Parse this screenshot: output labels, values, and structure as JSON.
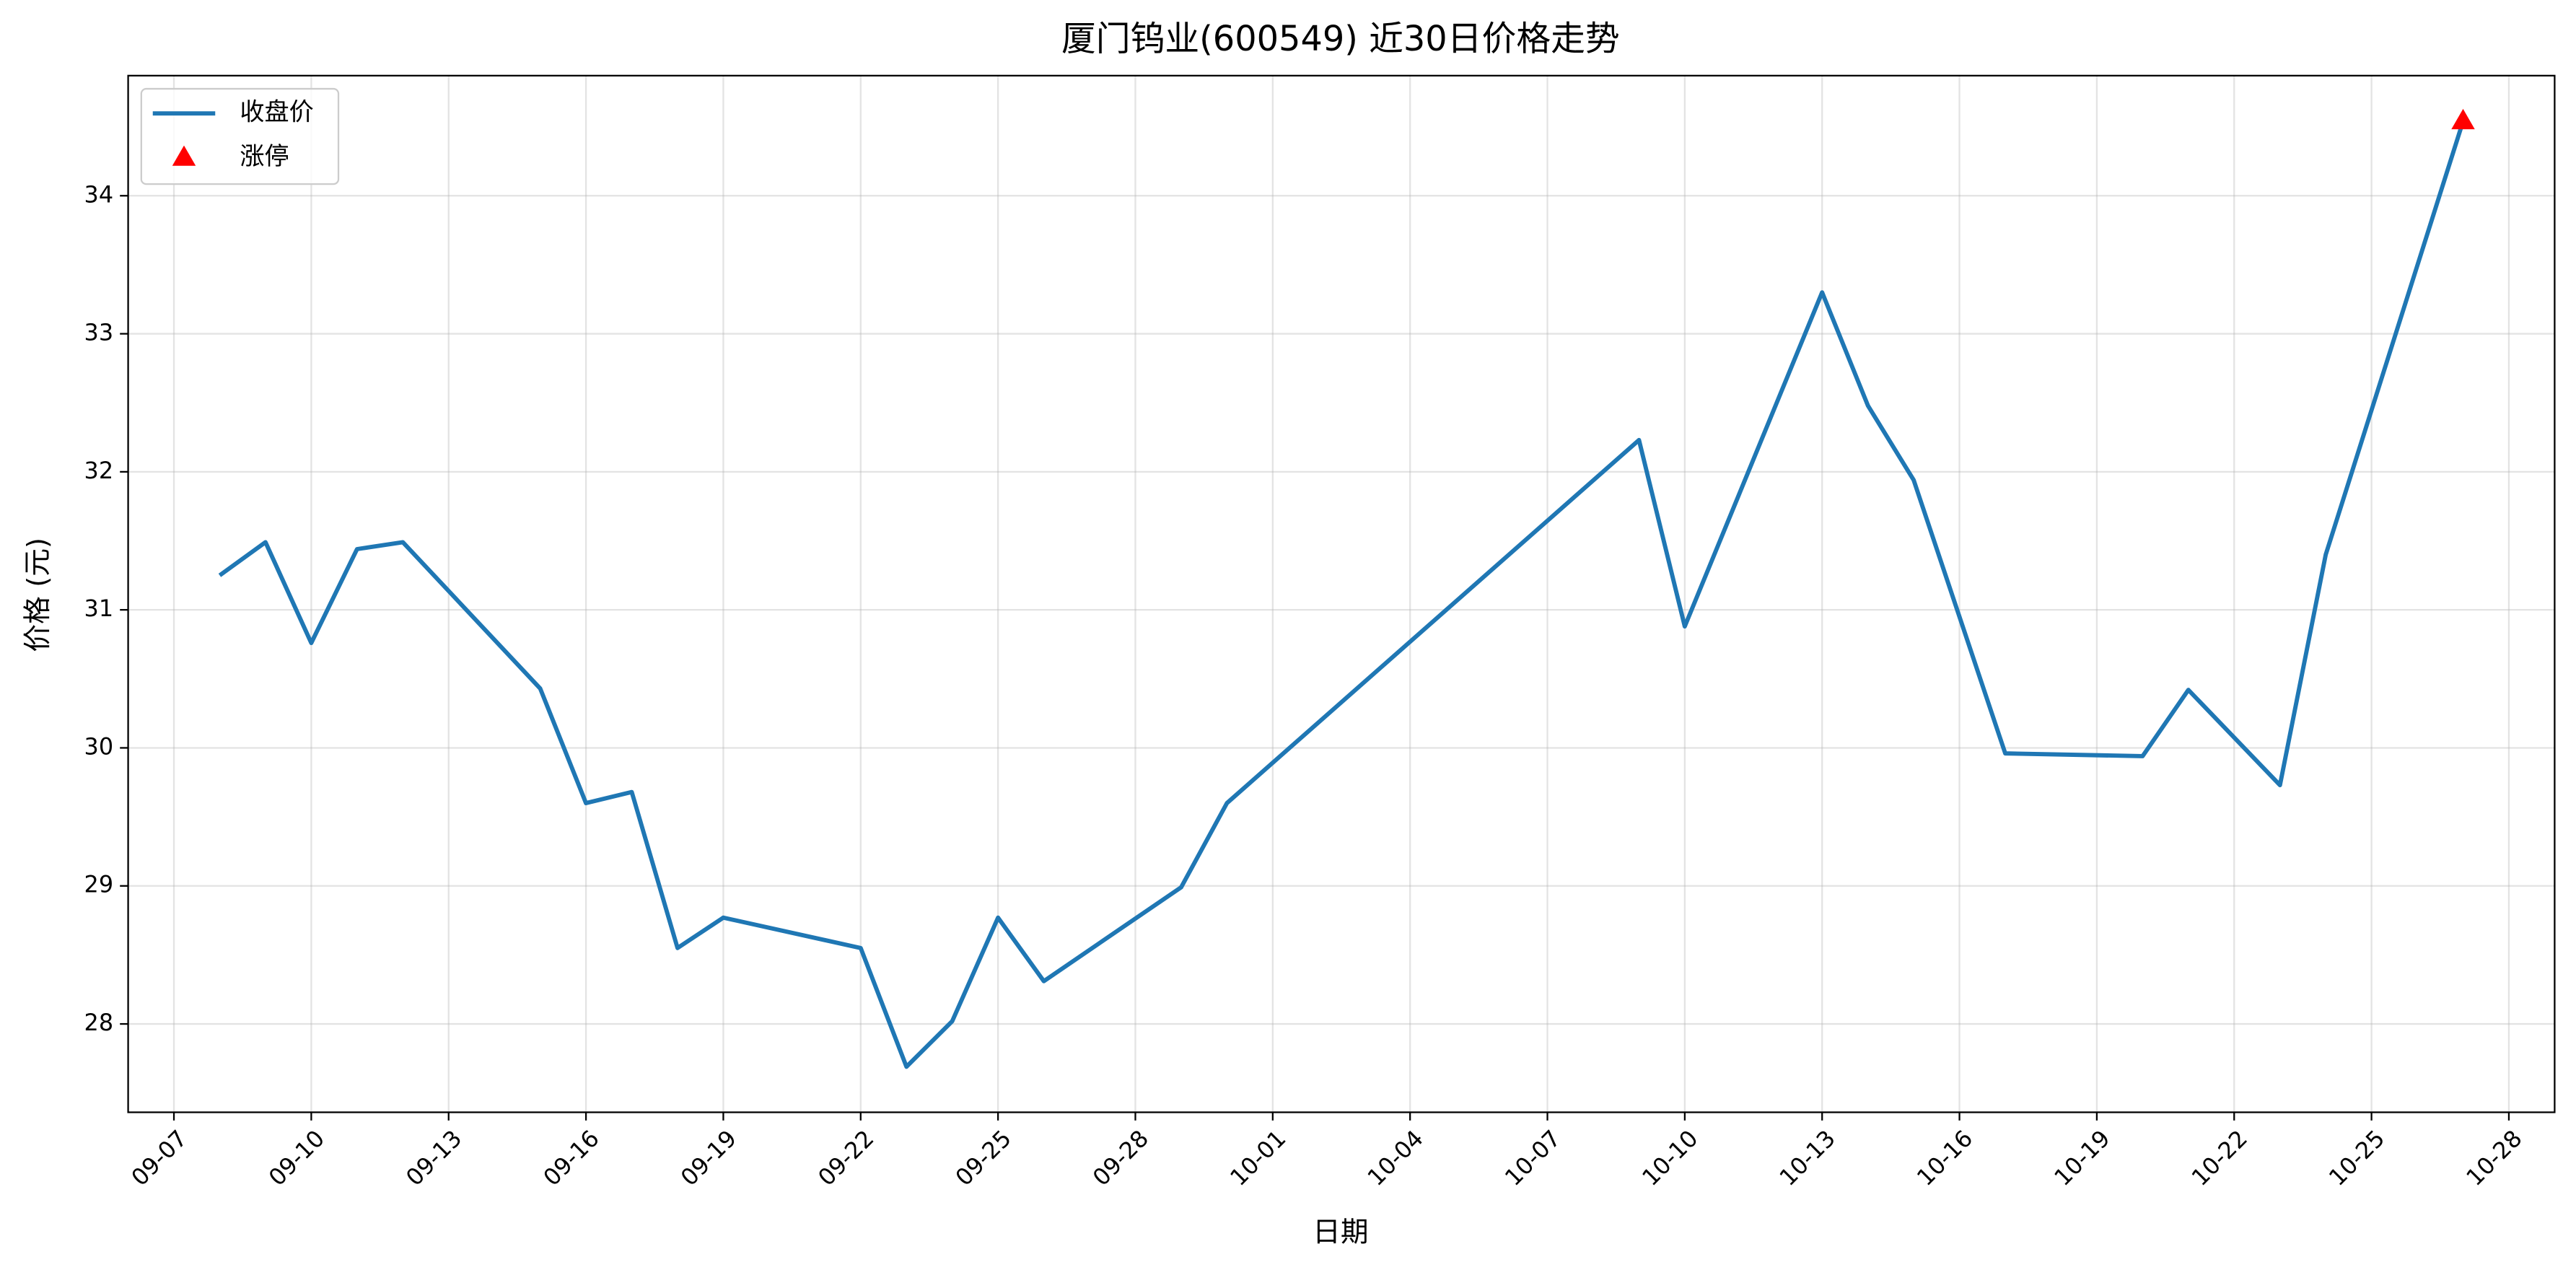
{
  "chart_data": {
    "type": "line",
    "title": "厦门钨业(600549) 近30日价格走势",
    "x_label": "日期",
    "y_label": "价格 (元)",
    "series": [
      {
        "name": "收盘价",
        "color": "#1f77b4",
        "type": "line",
        "x": [
          "09-08",
          "09-09",
          "09-10",
          "09-11",
          "09-12",
          "09-15",
          "09-16",
          "09-17",
          "09-18",
          "09-19",
          "09-22",
          "09-23",
          "09-24",
          "09-25",
          "09-26",
          "09-29",
          "09-30",
          "10-09",
          "10-10",
          "10-13",
          "10-14",
          "10-15",
          "10-17",
          "10-20",
          "10-21",
          "10-23",
          "10-24",
          "10-27"
        ],
        "values": [
          31.25,
          31.49,
          30.76,
          31.44,
          31.49,
          30.43,
          29.6,
          29.68,
          28.55,
          28.77,
          28.55,
          27.69,
          28.02,
          28.77,
          28.31,
          28.99,
          29.6,
          32.23,
          30.88,
          33.3,
          32.48,
          31.94,
          29.96,
          29.94,
          30.42,
          29.73,
          31.4,
          34.54
        ]
      },
      {
        "name": "涨停",
        "color": "#ff0000",
        "type": "scatter",
        "marker": "triangle",
        "x": [
          "10-27"
        ],
        "values": [
          34.54
        ]
      }
    ],
    "xlim": [
      "09-06",
      "10-29"
    ],
    "xticks": [
      "09-07",
      "09-10",
      "09-13",
      "09-16",
      "09-19",
      "09-22",
      "09-25",
      "09-28",
      "10-01",
      "10-04",
      "10-07",
      "10-10",
      "10-13",
      "10-16",
      "10-19",
      "10-22",
      "10-25",
      "10-28"
    ],
    "ylim": [
      27.36,
      34.87
    ],
    "yticks": [
      28,
      29,
      30,
      31,
      32,
      33,
      34
    ],
    "grid": true,
    "legend": "upper left"
  }
}
